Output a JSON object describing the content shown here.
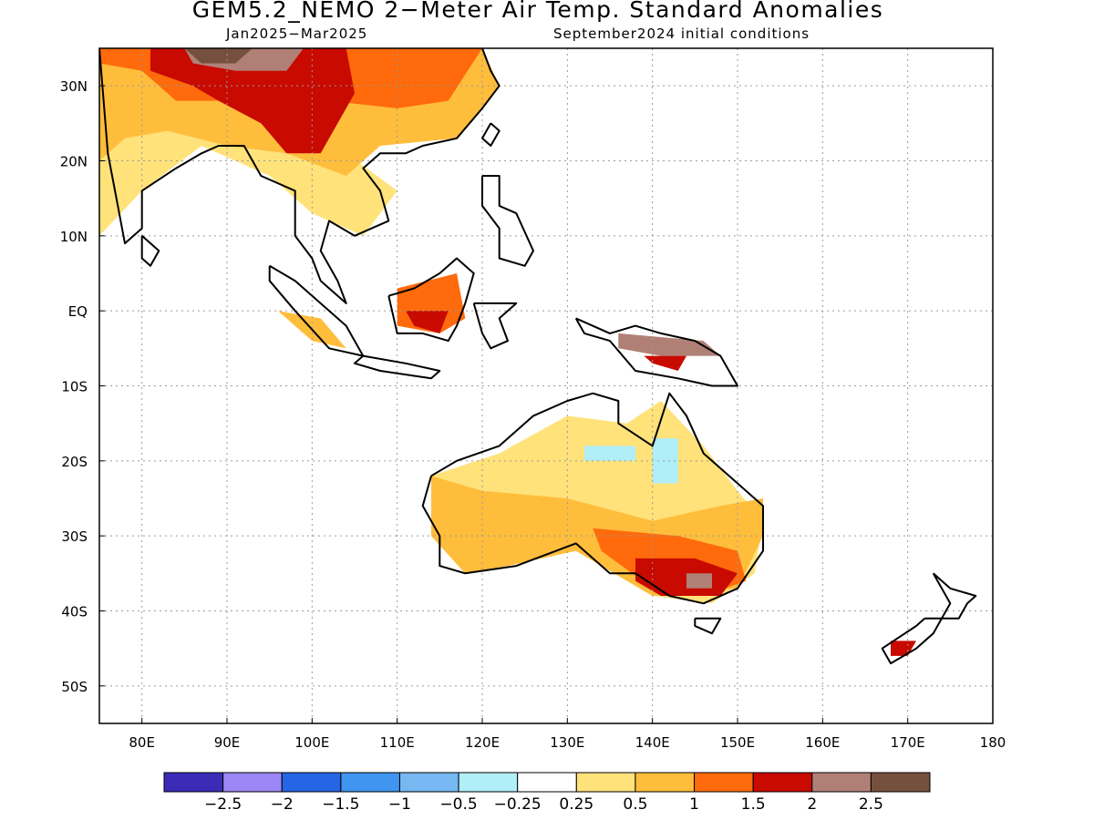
{
  "title": "GEM5.2_NEMO 2−Meter Air Temp. Standard Anomalies",
  "period": "Jan2025−Mar2025",
  "init": "September2024 initial conditions",
  "map": {
    "lon_range": [
      75,
      180
    ],
    "lat_range": [
      -55,
      35
    ],
    "gridlines": "dotted",
    "lat_ticks": [
      {
        "value": 30,
        "label": "30N"
      },
      {
        "value": 20,
        "label": "20N"
      },
      {
        "value": 10,
        "label": "10N"
      },
      {
        "value": 0,
        "label": "EQ"
      },
      {
        "value": -10,
        "label": "10S"
      },
      {
        "value": -20,
        "label": "20S"
      },
      {
        "value": -30,
        "label": "30S"
      },
      {
        "value": -40,
        "label": "40S"
      },
      {
        "value": -50,
        "label": "50S"
      }
    ],
    "lon_ticks": [
      {
        "value": 80,
        "label": "80E"
      },
      {
        "value": 90,
        "label": "90E"
      },
      {
        "value": 100,
        "label": "100E"
      },
      {
        "value": 110,
        "label": "110E"
      },
      {
        "value": 120,
        "label": "120E"
      },
      {
        "value": 130,
        "label": "130E"
      },
      {
        "value": 140,
        "label": "140E"
      },
      {
        "value": 150,
        "label": "150E"
      },
      {
        "value": 160,
        "label": "160E"
      },
      {
        "value": 170,
        "label": "170E"
      },
      {
        "value": 180,
        "label": "180"
      }
    ]
  },
  "colorbar": {
    "colors": [
      "#3b2bb7",
      "#9b87f5",
      "#2566e4",
      "#3f95ef",
      "#77b8f3",
      "#b0eef8",
      "#ffffff",
      "#ffe27a",
      "#ffbd3c",
      "#ff6a0c",
      "#c80a00",
      "#b08076",
      "#76503e"
    ],
    "labels": [
      "−2.5",
      "−2",
      "−1.5",
      "−1",
      "−0.5",
      "−0.25",
      "0.25",
      "0.5",
      "1",
      "1.5",
      "2",
      "2.5"
    ]
  },
  "anomaly_regions": [
    {
      "level": "0.5",
      "color": "#ffe27a",
      "lonlat": [
        [
          75,
          33
        ],
        [
          90,
          33
        ],
        [
          100,
          29
        ],
        [
          104,
          21
        ],
        [
          110,
          16
        ],
        [
          106,
          10
        ],
        [
          100,
          13
        ],
        [
          95,
          18
        ],
        [
          87,
          22
        ],
        [
          80,
          16
        ],
        [
          75,
          10
        ]
      ]
    },
    {
      "level": "1",
      "color": "#ffbd3c",
      "lonlat": [
        [
          75,
          35
        ],
        [
          120,
          35
        ],
        [
          122,
          30
        ],
        [
          117,
          23
        ],
        [
          108,
          22
        ],
        [
          104,
          18
        ],
        [
          97,
          21
        ],
        [
          90,
          22
        ],
        [
          83,
          24
        ],
        [
          78,
          23
        ],
        [
          75,
          20
        ]
      ]
    },
    {
      "level": "1.5",
      "color": "#ff6a0c",
      "lonlat": [
        [
          75,
          35
        ],
        [
          120,
          35
        ],
        [
          116,
          28
        ],
        [
          110,
          27
        ],
        [
          102,
          28
        ],
        [
          96,
          27
        ],
        [
          90,
          28
        ],
        [
          84,
          28
        ],
        [
          80,
          32
        ],
        [
          75,
          33
        ]
      ]
    },
    {
      "level": "2",
      "color": "#c80a00",
      "lonlat": [
        [
          81,
          35
        ],
        [
          104,
          35
        ],
        [
          105,
          29
        ],
        [
          101,
          21
        ],
        [
          97,
          21
        ],
        [
          94,
          25
        ],
        [
          89,
          28
        ],
        [
          86,
          30
        ],
        [
          81,
          32
        ]
      ]
    },
    {
      "level": "2.5",
      "color": "#b08076",
      "lonlat": [
        [
          85,
          35
        ],
        [
          99,
          35
        ],
        [
          97,
          32
        ],
        [
          91,
          32
        ],
        [
          86,
          33
        ]
      ]
    },
    {
      "level": "2.5+",
      "color": "#76503e",
      "lonlat": [
        [
          85,
          35
        ],
        [
          93,
          35
        ],
        [
          91,
          33
        ],
        [
          87,
          33
        ]
      ]
    },
    {
      "level": "1.5",
      "color": "#ff6a0c",
      "lonlat": [
        [
          110,
          3
        ],
        [
          117,
          5
        ],
        [
          118,
          -1
        ],
        [
          115,
          -3
        ],
        [
          110,
          -2
        ]
      ]
    },
    {
      "level": "2",
      "color": "#c80a00",
      "lonlat": [
        [
          111,
          0
        ],
        [
          116,
          0
        ],
        [
          115,
          -3
        ],
        [
          112,
          -2
        ]
      ]
    },
    {
      "level": "1",
      "color": "#ffbd3c",
      "lonlat": [
        [
          96,
          0
        ],
        [
          101,
          -1
        ],
        [
          104,
          -5
        ],
        [
          100,
          -4
        ]
      ]
    },
    {
      "level": "2.5",
      "color": "#b08076",
      "lonlat": [
        [
          136,
          -3
        ],
        [
          146,
          -4
        ],
        [
          148,
          -6
        ],
        [
          141,
          -6
        ],
        [
          136,
          -5
        ]
      ]
    },
    {
      "level": "2",
      "color": "#c80a00",
      "lonlat": [
        [
          139,
          -6
        ],
        [
          144,
          -6
        ],
        [
          143,
          -8
        ],
        [
          140,
          -7
        ]
      ]
    },
    {
      "level": "0.5",
      "color": "#ffe27a",
      "lonlat": [
        [
          114,
          -22
        ],
        [
          122,
          -19
        ],
        [
          130,
          -14
        ],
        [
          137,
          -15
        ],
        [
          141,
          -12
        ],
        [
          146,
          -18
        ],
        [
          150,
          -24
        ],
        [
          153,
          -28
        ],
        [
          152,
          -35
        ],
        [
          147,
          -39
        ],
        [
          140,
          -38
        ],
        [
          131,
          -32
        ],
        [
          118,
          -35
        ],
        [
          114,
          -30
        ]
      ]
    },
    {
      "level": "1",
      "color": "#ffbd3c",
      "lonlat": [
        [
          114,
          -22
        ],
        [
          120,
          -24
        ],
        [
          130,
          -25
        ],
        [
          140,
          -28
        ],
        [
          148,
          -26
        ],
        [
          153,
          -25
        ],
        [
          153,
          -30
        ],
        [
          150,
          -37
        ],
        [
          140,
          -38
        ],
        [
          131,
          -32
        ],
        [
          123,
          -34
        ],
        [
          118,
          -35
        ],
        [
          114,
          -30
        ]
      ]
    },
    {
      "level": "1.5",
      "color": "#ff6a0c",
      "lonlat": [
        [
          133,
          -29
        ],
        [
          143,
          -30
        ],
        [
          150,
          -32
        ],
        [
          151,
          -36
        ],
        [
          146,
          -38
        ],
        [
          140,
          -37
        ],
        [
          134,
          -32
        ]
      ]
    },
    {
      "level": "2",
      "color": "#c80a00",
      "lonlat": [
        [
          138,
          -33
        ],
        [
          145,
          -33
        ],
        [
          150,
          -35
        ],
        [
          148,
          -38
        ],
        [
          141,
          -38
        ],
        [
          138,
          -36
        ]
      ]
    },
    {
      "level": "2.5",
      "color": "#b08076",
      "lonlat": [
        [
          144,
          -35
        ],
        [
          147,
          -35
        ],
        [
          147,
          -37
        ],
        [
          144,
          -37
        ]
      ]
    },
    {
      "level": "-0.25",
      "color": "#b0eef8",
      "lonlat": [
        [
          140,
          -17
        ],
        [
          143,
          -17
        ],
        [
          143,
          -23
        ],
        [
          140,
          -23
        ]
      ]
    },
    {
      "level": "-0.25",
      "color": "#b0eef8",
      "lonlat": [
        [
          132,
          -18
        ],
        [
          138,
          -18
        ],
        [
          138,
          -20
        ],
        [
          132,
          -20
        ]
      ]
    },
    {
      "level": "2",
      "color": "#c80a00",
      "lonlat": [
        [
          168,
          -44
        ],
        [
          171,
          -44
        ],
        [
          170,
          -46
        ],
        [
          168,
          -46
        ]
      ]
    }
  ],
  "coastlines": [
    {
      "name": "india",
      "lonlat": [
        [
          75,
          35
        ],
        [
          76,
          21
        ],
        [
          77,
          15
        ],
        [
          78,
          9
        ],
        [
          80,
          11
        ],
        [
          80,
          16
        ],
        [
          84,
          19
        ],
        [
          87,
          21
        ],
        [
          89,
          22
        ],
        [
          92,
          22
        ],
        [
          94,
          18
        ],
        [
          98,
          16
        ],
        [
          98,
          10
        ],
        [
          100,
          7
        ],
        [
          101,
          4
        ],
        [
          104,
          1
        ],
        [
          103,
          4
        ],
        [
          101,
          8
        ],
        [
          102,
          12
        ],
        [
          105,
          10
        ],
        [
          107,
          11
        ],
        [
          109,
          12
        ],
        [
          108,
          16
        ],
        [
          106,
          19
        ],
        [
          108,
          21
        ],
        [
          111,
          21
        ],
        [
          113,
          22
        ],
        [
          117,
          23
        ],
        [
          120,
          27
        ],
        [
          122,
          30
        ],
        [
          121,
          32
        ],
        [
          120,
          35
        ]
      ]
    },
    {
      "name": "sri-lanka",
      "lonlat": [
        [
          80,
          10
        ],
        [
          82,
          8
        ],
        [
          81,
          6
        ],
        [
          80,
          7
        ],
        [
          80,
          10
        ]
      ]
    },
    {
      "name": "sumatra",
      "lonlat": [
        [
          95,
          6
        ],
        [
          98,
          4
        ],
        [
          104,
          -2
        ],
        [
          106,
          -6
        ],
        [
          102,
          -5
        ],
        [
          98,
          0
        ],
        [
          95,
          4
        ],
        [
          95,
          6
        ]
      ]
    },
    {
      "name": "java",
      "lonlat": [
        [
          106,
          -6
        ],
        [
          111,
          -7
        ],
        [
          115,
          -8
        ],
        [
          114,
          -9
        ],
        [
          108,
          -8
        ],
        [
          105,
          -7
        ],
        [
          106,
          -6
        ]
      ]
    },
    {
      "name": "borneo",
      "lonlat": [
        [
          109,
          2
        ],
        [
          112,
          3
        ],
        [
          115,
          5
        ],
        [
          117,
          7
        ],
        [
          119,
          5
        ],
        [
          118,
          1
        ],
        [
          117,
          -2
        ],
        [
          116,
          -4
        ],
        [
          113,
          -3
        ],
        [
          110,
          -3
        ],
        [
          109,
          2
        ]
      ]
    },
    {
      "name": "sulawesi",
      "lonlat": [
        [
          119,
          1
        ],
        [
          121,
          1
        ],
        [
          124,
          1
        ],
        [
          122,
          -1
        ],
        [
          123,
          -4
        ],
        [
          121,
          -5
        ],
        [
          120,
          -3
        ],
        [
          119,
          1
        ]
      ]
    },
    {
      "name": "taiwan",
      "lonlat": [
        [
          121,
          25
        ],
        [
          122,
          24
        ],
        [
          121,
          22
        ],
        [
          120,
          23
        ],
        [
          121,
          25
        ]
      ]
    },
    {
      "name": "philippines",
      "lonlat": [
        [
          120,
          18
        ],
        [
          122,
          18
        ],
        [
          122,
          14
        ],
        [
          124,
          13
        ],
        [
          126,
          8
        ],
        [
          125,
          6
        ],
        [
          122,
          7
        ],
        [
          122,
          11
        ],
        [
          120,
          14
        ],
        [
          120,
          18
        ]
      ]
    },
    {
      "name": "new-guinea",
      "lonlat": [
        [
          131,
          -1
        ],
        [
          135,
          -3
        ],
        [
          138,
          -2
        ],
        [
          141,
          -3
        ],
        [
          145,
          -4
        ],
        [
          148,
          -6
        ],
        [
          150,
          -10
        ],
        [
          147,
          -10
        ],
        [
          143,
          -9
        ],
        [
          138,
          -8
        ],
        [
          135,
          -4
        ],
        [
          132,
          -3
        ],
        [
          131,
          -1
        ]
      ]
    },
    {
      "name": "australia",
      "lonlat": [
        [
          114,
          -22
        ],
        [
          117,
          -20
        ],
        [
          122,
          -18
        ],
        [
          126,
          -14
        ],
        [
          130,
          -12
        ],
        [
          133,
          -11
        ],
        [
          136,
          -12
        ],
        [
          136,
          -15
        ],
        [
          140,
          -18
        ],
        [
          142,
          -11
        ],
        [
          144,
          -14
        ],
        [
          146,
          -19
        ],
        [
          150,
          -23
        ],
        [
          153,
          -26
        ],
        [
          153,
          -32
        ],
        [
          150,
          -37
        ],
        [
          146,
          -39
        ],
        [
          142,
          -38
        ],
        [
          138,
          -35
        ],
        [
          135,
          -35
        ],
        [
          131,
          -31
        ],
        [
          124,
          -34
        ],
        [
          118,
          -35
        ],
        [
          115,
          -34
        ],
        [
          115,
          -30
        ],
        [
          113,
          -26
        ],
        [
          114,
          -22
        ]
      ]
    },
    {
      "name": "tasmania",
      "lonlat": [
        [
          145,
          -41
        ],
        [
          148,
          -41
        ],
        [
          147,
          -43
        ],
        [
          145,
          -42
        ],
        [
          145,
          -41
        ]
      ]
    },
    {
      "name": "nz-north",
      "lonlat": [
        [
          173,
          -35
        ],
        [
          175,
          -37
        ],
        [
          178,
          -38
        ],
        [
          177,
          -39
        ],
        [
          176,
          -41
        ],
        [
          174,
          -41
        ],
        [
          175,
          -39
        ],
        [
          173,
          -35
        ]
      ]
    },
    {
      "name": "nz-south",
      "lonlat": [
        [
          172,
          -41
        ],
        [
          174,
          -41
        ],
        [
          173,
          -43
        ],
        [
          171,
          -45
        ],
        [
          168,
          -47
        ],
        [
          167,
          -45
        ],
        [
          171,
          -42
        ],
        [
          172,
          -41
        ]
      ]
    }
  ]
}
